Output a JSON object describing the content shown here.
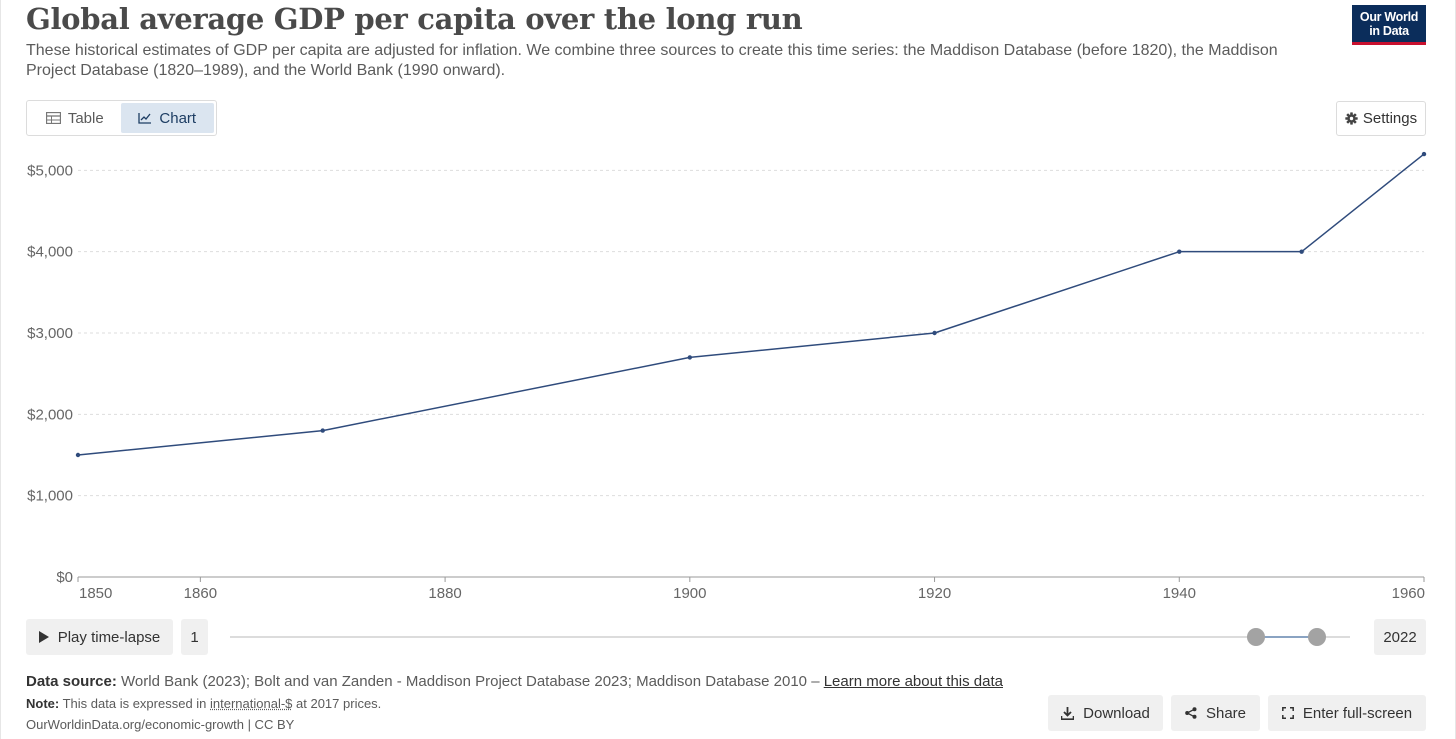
{
  "header": {
    "title": "Global average GDP per capita over the long run",
    "subtitle": "These historical estimates of GDP per capita are adjusted for inflation. We combine three sources to create this time series: the Maddison Database (before 1820), the Maddison Project Database (1820–1989), and the World Bank (1990 onward).",
    "logo_line1": "Our World",
    "logo_line2": "in Data"
  },
  "tabs": {
    "table_label": "Table",
    "chart_label": "Chart",
    "active": "Chart"
  },
  "settings_label": "Settings",
  "chart_data": {
    "type": "line",
    "x": [
      1850,
      1870,
      1900,
      1920,
      1940,
      1950,
      1960
    ],
    "series": [
      {
        "values": [
          1500,
          1800,
          2700,
          3000,
          4000,
          4000,
          5200
        ]
      }
    ],
    "xlim": [
      1850,
      1960
    ],
    "ylim": [
      0,
      5250
    ],
    "x_ticks": [
      1850,
      1860,
      1880,
      1900,
      1920,
      1940,
      1960
    ],
    "x_tick_labels": [
      "1850",
      "1860",
      "1880",
      "1900",
      "1920",
      "1940",
      "1960"
    ],
    "y_ticks": [
      0,
      1000,
      2000,
      3000,
      4000,
      5000
    ],
    "y_tick_labels": [
      "$0",
      "$1,000",
      "$2,000",
      "$3,000",
      "$4,000",
      "$5,000"
    ],
    "grid": "horizontal dashed",
    "line_color": "#2f4b7c",
    "grid_color": "#dddddd"
  },
  "timeline": {
    "play_label": "Play time-lapse",
    "start_label": "1",
    "end_label": "2022"
  },
  "footer": {
    "source_label": "Data source:",
    "source_text": "World Bank (2023); Bolt and van Zanden - Maddison Project Database 2023; Maddison Database 2010 – ",
    "learn_more": "Learn more about this data",
    "note_label": "Note:",
    "note_pre": "This data is expressed in ",
    "note_link": "international-$",
    "note_post": " at 2017 prices.",
    "url": "OurWorldinData.org/economic-growth | CC BY"
  },
  "actions": {
    "download_label": "Download",
    "share_label": "Share",
    "fullscreen_label": "Enter full-screen"
  }
}
